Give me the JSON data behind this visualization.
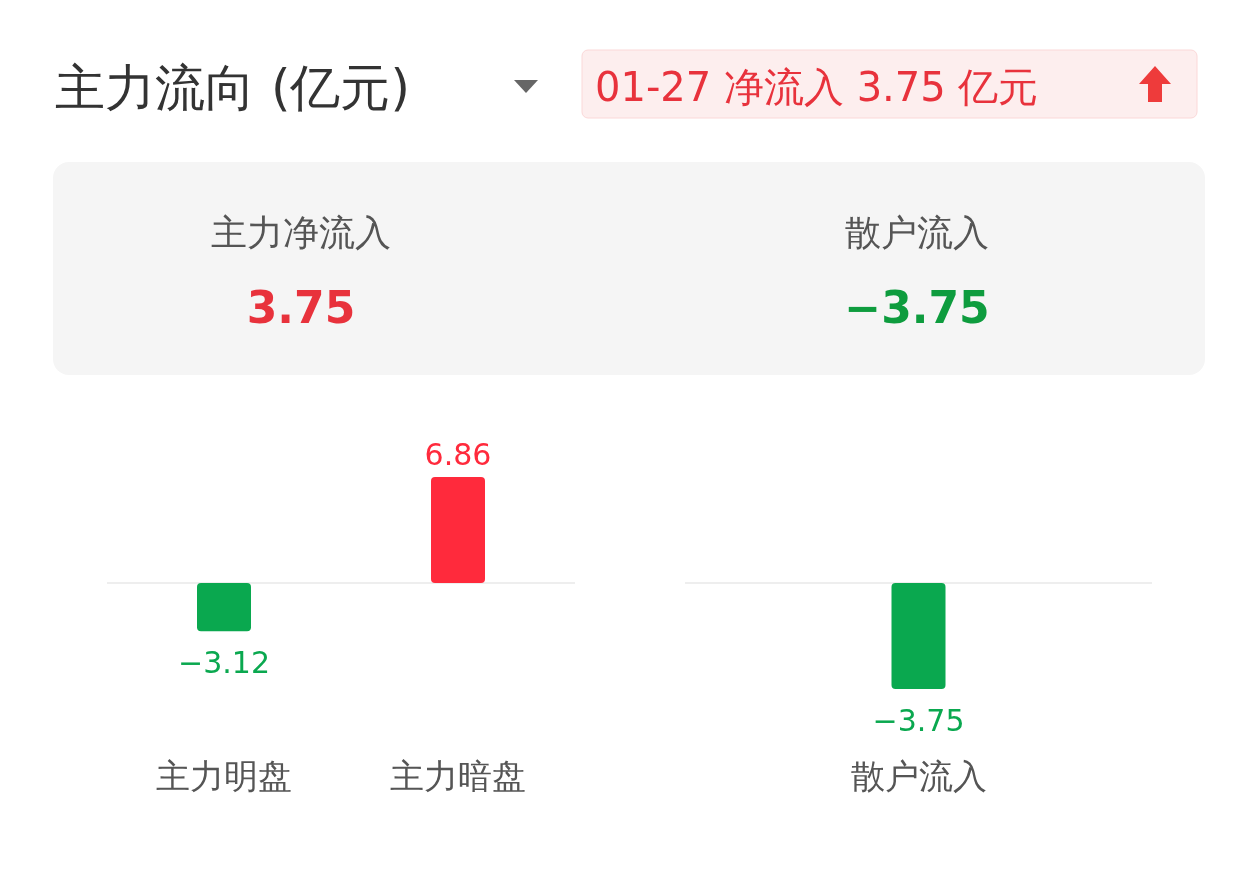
{
  "chart_data": [
    {
      "type": "other",
      "title": "主力流向 (亿元)",
      "subtitle": "01-27 净流入 3.75 亿元",
      "categories": [
        "主力净流入",
        "散户流入"
      ],
      "values": [
        3.75,
        -3.75
      ],
      "data_labels": true
    },
    {
      "type": "bar",
      "categories": [
        "主力明盘",
        "主力暗盘"
      ],
      "values": [
        -3.12,
        6.86
      ],
      "colors": [
        "#0aa84f",
        "#ff2a3c"
      ],
      "data_labels": true
    },
    {
      "type": "bar",
      "categories": [
        "散户流入"
      ],
      "values": [
        -3.75
      ],
      "colors": [
        "#0aa84f"
      ],
      "data_labels": true
    }
  ]
}
